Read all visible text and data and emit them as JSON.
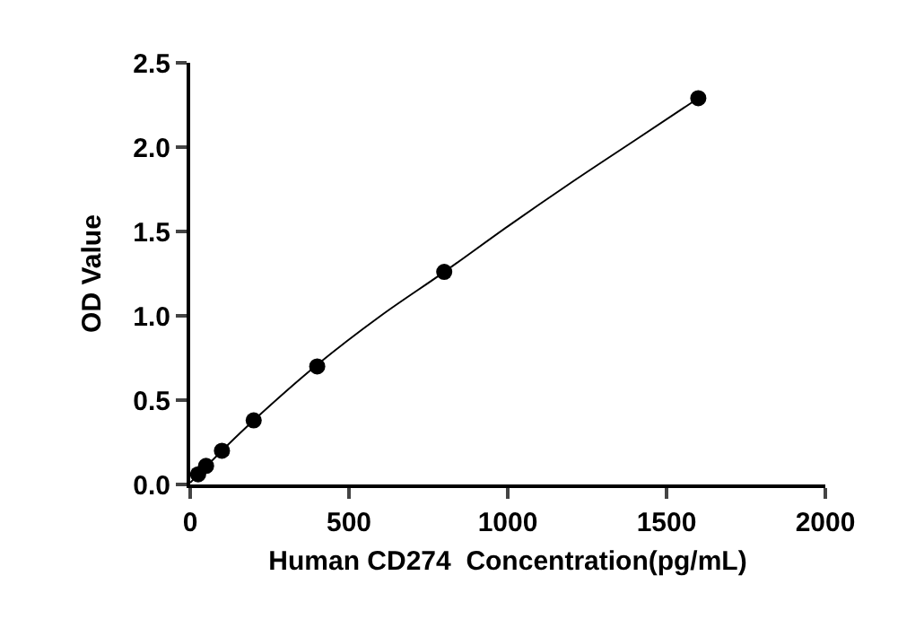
{
  "chart_data": {
    "type": "scatter",
    "xlabel": "Human CD274  Concentration(pg/mL)",
    "ylabel": "OD Value",
    "xlim": [
      0,
      2000
    ],
    "xticks": [
      0,
      500,
      1000,
      1500,
      2000
    ],
    "ylim": [
      0,
      2.5
    ],
    "yticks": [
      {
        "value": 0,
        "label": "0.0"
      },
      0.5,
      {
        "value": 1,
        "label": "1.0"
      },
      1.5,
      {
        "value": 2,
        "label": "2.0"
      },
      2.5
    ],
    "grid": false,
    "series": [
      {
        "color": "#000000",
        "marker": "circle",
        "x": [
          25,
          50,
          100,
          200,
          400,
          800,
          1600
        ],
        "values": [
          0.06,
          0.11,
          0.2,
          0.38,
          0.7,
          1.26,
          2.29
        ]
      },
      {
        "type": "line",
        "color": "#000000",
        "marker": "none",
        "line_style": "solid",
        "x": [
          0,
          100,
          200,
          400,
          600,
          800,
          1000,
          1200,
          1400,
          1600
        ],
        "values": [
          0.01,
          0.2,
          0.38,
          0.71,
          1.0,
          1.26,
          1.53,
          1.79,
          2.04,
          2.29
        ]
      }
    ]
  }
}
